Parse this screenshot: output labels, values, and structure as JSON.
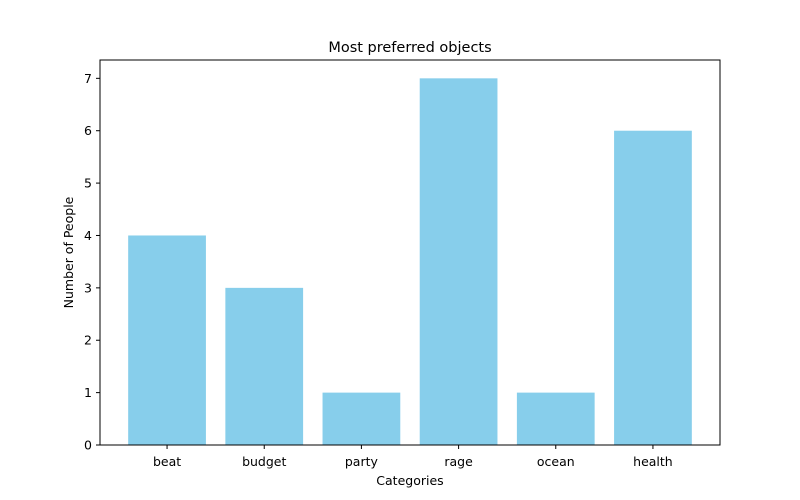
{
  "chart_data": {
    "type": "bar",
    "title": "Most preferred objects",
    "xlabel": "Categories",
    "ylabel": "Number of People",
    "categories": [
      "beat",
      "budget",
      "party",
      "rage",
      "ocean",
      "health"
    ],
    "values": [
      4,
      3,
      1,
      7,
      1,
      6
    ],
    "ylim": [
      0,
      7.35
    ],
    "yticks": [
      0,
      1,
      2,
      3,
      4,
      5,
      6,
      7
    ],
    "bar_color": "#87CEEB",
    "grid": false,
    "legend": "none"
  }
}
